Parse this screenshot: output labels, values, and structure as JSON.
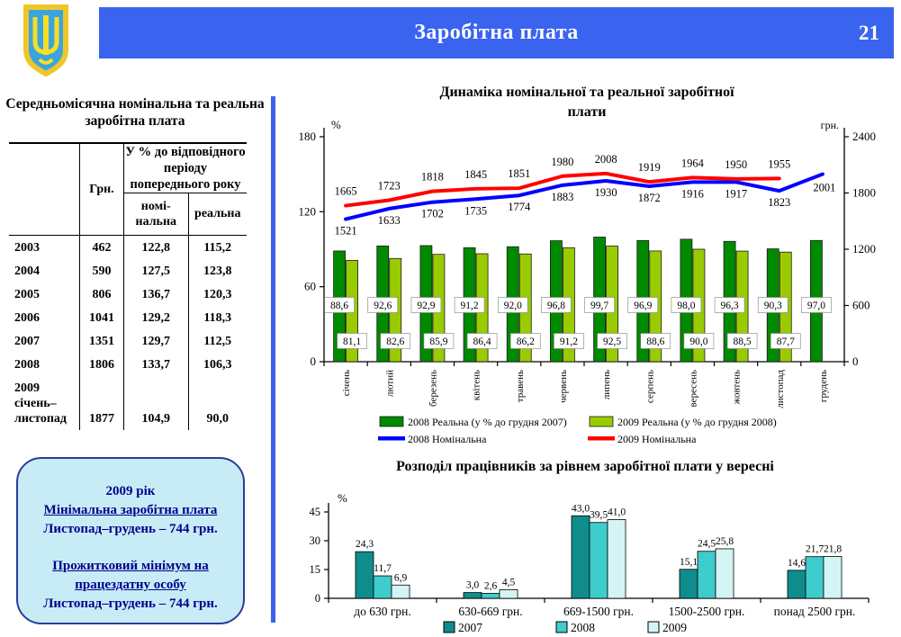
{
  "header": {
    "title": "Заробітна плата",
    "page_number": "21"
  },
  "icons": {
    "emblem": "ukraine-trident-shield-coat-of-arms"
  },
  "colors": {
    "header_blue": "#3A63F0",
    "bar_2008_real": "#008A00",
    "bar_2009_real": "#99CC00",
    "line_2008_nominal": "#0000FF",
    "line_2009_nominal": "#FF0000",
    "bar_label_green": "#007000",
    "bar_2007": "#0F8C8C",
    "bar_2008": "#3FCCCC",
    "bar_2009": "#D5F5F5",
    "info_box_bg": "#C8ECF6",
    "info_box_border": "#2E3B97",
    "info_text": "#00008B"
  },
  "left_panel": {
    "table": {
      "title": "Середньомісячна номінальна та реальна  заробітна плата",
      "col_hrn": "Грн.",
      "col_pct_group": "У % до відповідного періоду попереднього року",
      "col_nominal": "номі­нальна",
      "col_real": "реальна",
      "rows": [
        {
          "year": "2003",
          "hrn": "462",
          "nominal": "122,8",
          "real": "115,2"
        },
        {
          "year": "2004",
          "hrn": "590",
          "nominal": "127,5",
          "real": "123,8"
        },
        {
          "year": "2005",
          "hrn": "806",
          "nominal": "136,7",
          "real": "120,3"
        },
        {
          "year": "2006",
          "hrn": "1041",
          "nominal": "129,2",
          "real": "118,3"
        },
        {
          "year": "2007",
          "hrn": "1351",
          "nominal": "129,7",
          "real": "112,5"
        },
        {
          "year": "2008",
          "hrn": "1806",
          "nominal": "133,7",
          "real": "106,3"
        },
        {
          "year": "2009 січень– листопад",
          "hrn": "1877",
          "nominal": "104,9",
          "real": "90,0"
        }
      ]
    },
    "info_box": {
      "line1": "2009 рік",
      "line2": "Мінімальна заробітна плата",
      "line3": "Листопад–грудень – 744 грн.",
      "line4": "Прожитковий мінімум на працездатну особу",
      "line5": "Листопад–грудень – 744 грн."
    }
  },
  "chart_data": [
    {
      "type": "bar+line",
      "title": "Динаміка номінальної та реальної заробітної плати",
      "left_axis": {
        "label": "%",
        "ticks": [
          0,
          60,
          120,
          180
        ],
        "max": 180
      },
      "right_axis": {
        "label": "грн.",
        "ticks": [
          0,
          600,
          1200,
          1800,
          2400
        ],
        "max": 2400
      },
      "categories": [
        "січень",
        "лютий",
        "березень",
        "квітень",
        "травень",
        "червень",
        "липень",
        "серпень",
        "вересень",
        "жовтень",
        "листопад",
        "грудень"
      ],
      "series": [
        {
          "name": "2008 Реальна (у % до грудня 2007)",
          "type": "bar",
          "axis": "left",
          "color_key": "bar_2008_real",
          "values": [
            88.6,
            92.6,
            92.9,
            91.2,
            92.0,
            96.8,
            99.7,
            96.9,
            98.0,
            96.3,
            90.3,
            97.0
          ]
        },
        {
          "name": "2009 Реальна (у % до грудня 2008)",
          "type": "bar",
          "axis": "left",
          "color_key": "bar_2009_real",
          "values": [
            81.1,
            82.6,
            85.9,
            86.4,
            86.2,
            91.2,
            92.5,
            88.6,
            90.0,
            88.5,
            87.7,
            null
          ]
        },
        {
          "name": "2008 Номінальна",
          "type": "line",
          "axis": "right",
          "color_key": "line_2008_nominal",
          "values": [
            1521,
            1633,
            1702,
            1735,
            1774,
            1883,
            1930,
            1872,
            1916,
            1917,
            1823,
            2001
          ]
        },
        {
          "name": "2009 Номінальна",
          "type": "line",
          "axis": "right",
          "color_key": "line_2009_nominal",
          "values": [
            1665,
            1723,
            1818,
            1845,
            1851,
            1980,
            2008,
            1919,
            1964,
            1950,
            1955,
            null
          ]
        }
      ],
      "legend_position": "bottom",
      "grid": false
    },
    {
      "type": "bar",
      "title": "Розподіл працівників за рівнем заробітної плати у вересні",
      "ylabel": "%",
      "y_ticks": [
        0,
        15,
        30,
        45
      ],
      "ylim": [
        0,
        45
      ],
      "categories": [
        "до 630 грн.",
        "630-669 грн.",
        "669-1500 грн.",
        "1500-2500 грн.",
        "понад 2500 грн."
      ],
      "series": [
        {
          "name": "2007",
          "color_key": "bar_2007",
          "values": [
            24.3,
            3.0,
            43.0,
            15.1,
            14.6
          ]
        },
        {
          "name": "2008",
          "color_key": "bar_2008",
          "values": [
            11.7,
            2.6,
            39.5,
            24.5,
            21.7
          ]
        },
        {
          "name": "2009",
          "color_key": "bar_2009",
          "values": [
            6.9,
            4.5,
            41.0,
            25.8,
            21.8
          ]
        }
      ],
      "legend_position": "bottom",
      "grid": false
    }
  ]
}
